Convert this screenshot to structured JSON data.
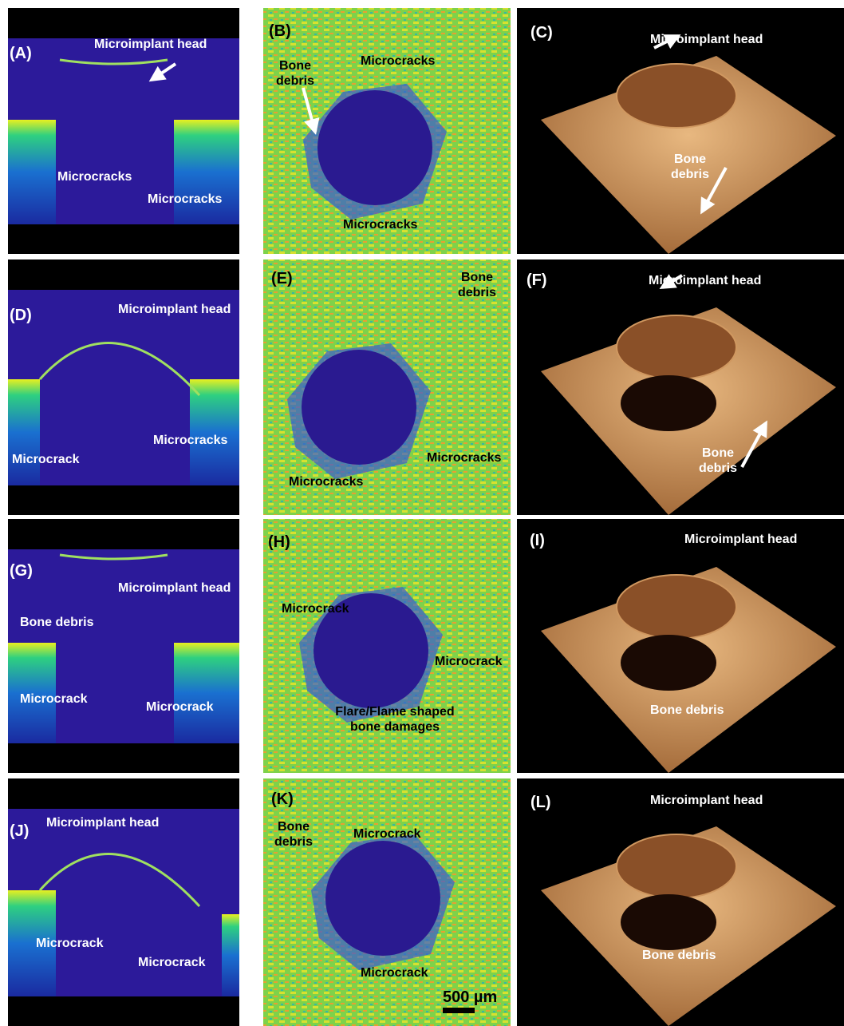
{
  "panels": [
    {
      "label": "(A)",
      "annotations": [
        "Microimplant head",
        "Microcracks",
        "Microcracks"
      ]
    },
    {
      "label": "(B)",
      "annotations": [
        "Bone debris",
        "Microcracks",
        "Microcracks"
      ]
    },
    {
      "label": "(C)",
      "annotations": [
        "Microimplant head",
        "Bone debris"
      ]
    },
    {
      "label": "(D)",
      "annotations": [
        "Microimplant head",
        "Microcracks",
        "Microcrack"
      ]
    },
    {
      "label": "(E)",
      "annotations": [
        "Bone debris",
        "Microcracks",
        "Microcracks"
      ]
    },
    {
      "label": "(F)",
      "annotations": [
        "Microimplant head",
        "Bone debris"
      ]
    },
    {
      "label": "(G)",
      "annotations": [
        "Microimplant head",
        "Bone debris",
        "Microcrack",
        "Microcrack"
      ]
    },
    {
      "label": "(H)",
      "annotations": [
        "Microcrack",
        "Microcrack",
        "Flare/Flame shaped bone damages"
      ]
    },
    {
      "label": "(I)",
      "annotations": [
        "Microimplant head",
        "Bone debris"
      ]
    },
    {
      "label": "(J)",
      "annotations": [
        "Microimplant head",
        "Microcrack",
        "Microcrack"
      ]
    },
    {
      "label": "(K)",
      "annotations": [
        "Bone debris",
        "Microcrack",
        "Microcrack"
      ]
    },
    {
      "label": "(L)",
      "annotations": [
        "Microimplant head",
        "Bone debris"
      ]
    }
  ],
  "scale_bar": "500 µm"
}
